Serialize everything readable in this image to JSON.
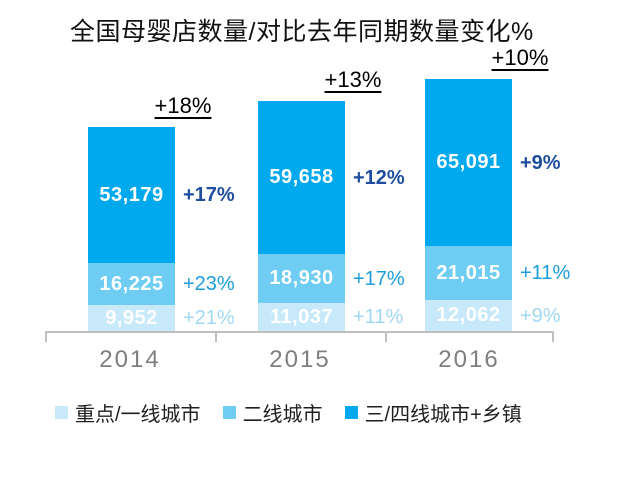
{
  "title": "全国母婴店数量/对比去年同期数量变化%",
  "colors": {
    "tier1_fill": "#C8E9FA",
    "tier2_fill": "#6FCDF4",
    "tier3_fill": "#00A9ED",
    "tier1_pct_text": "#A0D8F2",
    "tier2_pct_text": "#1B9DD9",
    "tier3_pct_text": "#1F4EA0",
    "total_text": "#000000",
    "axis": "#BFBFBF",
    "year_text": "#7F7F7F"
  },
  "chart_data": {
    "type": "bar",
    "stacked": true,
    "title": "全国母婴店数量/对比去年同期数量变化%",
    "categories": [
      "2014",
      "2015",
      "2016"
    ],
    "series": [
      {
        "name": "重点/一线城市",
        "values": [
          9952,
          11037,
          12062
        ],
        "value_labels": [
          "9,952",
          "11,037",
          "12,062"
        ],
        "pct_change": [
          "+21%",
          "+11%",
          "+9%"
        ]
      },
      {
        "name": "二线城市",
        "values": [
          16225,
          18930,
          21015
        ],
        "value_labels": [
          "16,225",
          "18,930",
          "21,015"
        ],
        "pct_change": [
          "+23%",
          "+17%",
          "+11%"
        ]
      },
      {
        "name": "三/四线城市+乡镇",
        "values": [
          53179,
          59658,
          65091
        ],
        "value_labels": [
          "53,179",
          "59,658",
          "65,091"
        ],
        "pct_change": [
          "+17%",
          "+12%",
          "+9%"
        ]
      }
    ],
    "totals_pct_change": [
      "+18%",
      "+13%",
      "+10%"
    ],
    "legend": [
      "重点/一线城市",
      "二线城市",
      "三/四线城市+乡镇"
    ],
    "legend_position": "bottom",
    "grid": false,
    "value_axis_shown": false
  }
}
